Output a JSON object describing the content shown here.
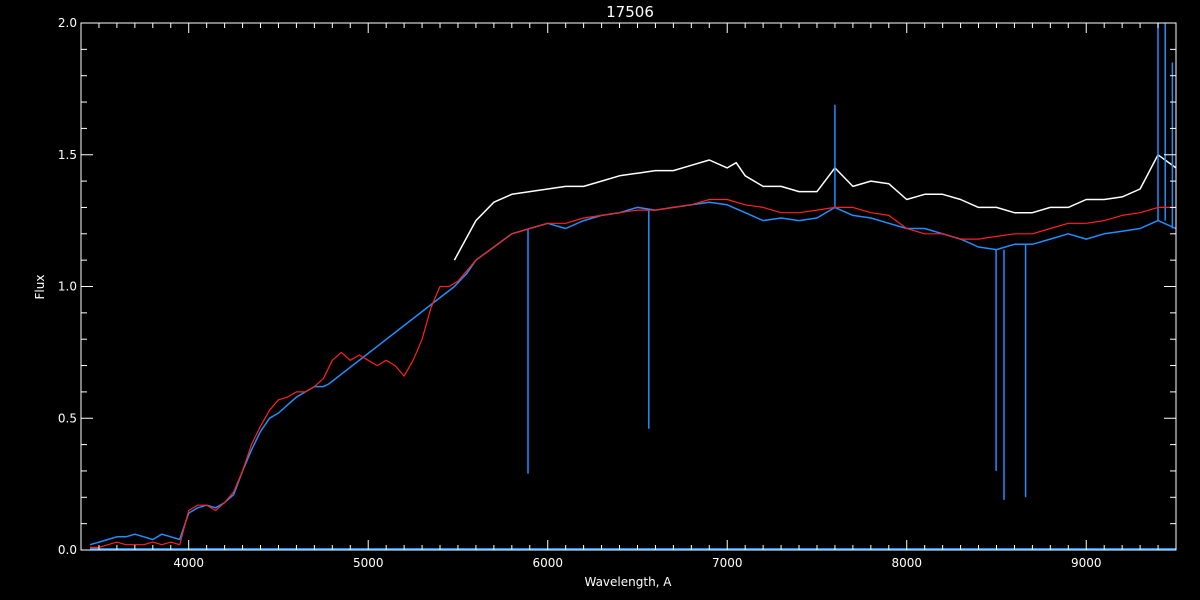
{
  "chart_data": {
    "type": "line",
    "title": "17506",
    "xlabel": "Wavelength, A",
    "ylabel": "Flux",
    "xlim": [
      3400,
      9500
    ],
    "ylim": [
      0,
      2.0
    ],
    "grid": false,
    "x_ticks": [
      {
        "value": 4000,
        "label": "4000"
      },
      {
        "value": 5000,
        "label": "5000"
      },
      {
        "value": 6000,
        "label": "6000"
      },
      {
        "value": 7000,
        "label": "7000"
      },
      {
        "value": 8000,
        "label": "8000"
      },
      {
        "value": 9000,
        "label": "9000"
      }
    ],
    "y_ticks": [
      {
        "value": 0.0,
        "label": "0.0"
      },
      {
        "value": 0.5,
        "label": "0.5"
      },
      {
        "value": 1.0,
        "label": "1.0"
      },
      {
        "value": 1.5,
        "label": "1.5"
      },
      {
        "value": 2.0,
        "label": "2.0"
      }
    ],
    "series": [
      {
        "color": "#ffffff",
        "x": [
          5480,
          5600,
          5700,
          5800,
          5900,
          6000,
          6100,
          6200,
          6300,
          6400,
          6500,
          6600,
          6700,
          6800,
          6900,
          7000,
          7050,
          7100,
          7200,
          7300,
          7400,
          7500,
          7600,
          7700,
          7800,
          7900,
          8000,
          8100,
          8200,
          8300,
          8400,
          8500,
          8600,
          8700,
          8800,
          8900,
          9000,
          9100,
          9200,
          9300,
          9400,
          9500
        ],
        "y": [
          1.1,
          1.25,
          1.32,
          1.35,
          1.36,
          1.37,
          1.38,
          1.38,
          1.4,
          1.42,
          1.43,
          1.44,
          1.44,
          1.46,
          1.48,
          1.45,
          1.47,
          1.42,
          1.38,
          1.38,
          1.36,
          1.36,
          1.45,
          1.38,
          1.4,
          1.39,
          1.33,
          1.35,
          1.35,
          1.33,
          1.3,
          1.3,
          1.28,
          1.28,
          1.3,
          1.3,
          1.33,
          1.33,
          1.34,
          1.37,
          1.5,
          1.45
        ]
      },
      {
        "color": "#1e8fff",
        "x": [
          3450,
          3500,
          3550,
          3600,
          3650,
          3700,
          3750,
          3800,
          3850,
          3900,
          3950,
          4000,
          4050,
          4100,
          4150,
          4200,
          4250,
          4300,
          4350,
          4400,
          4450,
          4500,
          4550,
          4600,
          4650,
          4700,
          4750,
          4780,
          5480,
          5550,
          5600,
          5700,
          5800,
          5900,
          6000,
          6100,
          6200,
          6300,
          6400,
          6500,
          6600,
          6700,
          6800,
          6900,
          7000,
          7100,
          7200,
          7300,
          7400,
          7500,
          7600,
          7700,
          7800,
          7900,
          8000,
          8100,
          8200,
          8300,
          8400,
          8500,
          8600,
          8700,
          8800,
          8900,
          9000,
          9100,
          9200,
          9300,
          9400,
          9500
        ],
        "y": [
          0.02,
          0.03,
          0.04,
          0.05,
          0.05,
          0.06,
          0.05,
          0.04,
          0.06,
          0.05,
          0.04,
          0.14,
          0.16,
          0.17,
          0.16,
          0.18,
          0.21,
          0.3,
          0.38,
          0.45,
          0.5,
          0.52,
          0.55,
          0.58,
          0.6,
          0.62,
          0.62,
          0.63,
          1.0,
          1.05,
          1.1,
          1.15,
          1.2,
          1.22,
          1.24,
          1.22,
          1.25,
          1.27,
          1.28,
          1.3,
          1.29,
          1.3,
          1.31,
          1.32,
          1.31,
          1.28,
          1.25,
          1.26,
          1.25,
          1.26,
          1.3,
          1.27,
          1.26,
          1.24,
          1.22,
          1.22,
          1.2,
          1.18,
          1.15,
          1.14,
          1.16,
          1.16,
          1.18,
          1.2,
          1.18,
          1.2,
          1.21,
          1.22,
          1.25,
          1.22
        ],
        "absorption_lines": [
          {
            "x": 5890,
            "y": 0.29
          },
          {
            "x": 6563,
            "y": 0.46
          },
          {
            "x": 7600,
            "y": 1.69
          },
          {
            "x": 8498,
            "y": 0.3
          },
          {
            "x": 8542,
            "y": 0.19
          },
          {
            "x": 8662,
            "y": 0.2
          },
          {
            "x": 9400,
            "y": 2.0
          },
          {
            "x": 9440,
            "y": 2.0
          },
          {
            "x": 9480,
            "y": 1.85
          }
        ]
      },
      {
        "color": "#1e8fff",
        "x": [
          3450,
          9500
        ],
        "y": [
          0.005,
          0.005
        ]
      },
      {
        "color": "#ff2020",
        "x": [
          3450,
          3500,
          3550,
          3600,
          3650,
          3700,
          3750,
          3800,
          3850,
          3900,
          3950,
          4000,
          4050,
          4100,
          4150,
          4200,
          4250,
          4300,
          4350,
          4400,
          4450,
          4500,
          4550,
          4600,
          4650,
          4700,
          4750,
          4800,
          4850,
          4900,
          4950,
          5000,
          5050,
          5100,
          5150,
          5200,
          5250,
          5300,
          5350,
          5400,
          5450,
          5500,
          5600,
          5700,
          5800,
          5900,
          6000,
          6100,
          6200,
          6300,
          6400,
          6500,
          6600,
          6700,
          6800,
          6900,
          7000,
          7100,
          7200,
          7300,
          7400,
          7500,
          7600,
          7700,
          7800,
          7900,
          8000,
          8100,
          8200,
          8300,
          8400,
          8500,
          8600,
          8700,
          8800,
          8900,
          9000,
          9100,
          9200,
          9300,
          9400,
          9500
        ],
        "y": [
          0.01,
          0.01,
          0.02,
          0.03,
          0.02,
          0.02,
          0.02,
          0.03,
          0.02,
          0.03,
          0.02,
          0.15,
          0.17,
          0.17,
          0.15,
          0.18,
          0.22,
          0.3,
          0.4,
          0.47,
          0.53,
          0.57,
          0.58,
          0.6,
          0.6,
          0.62,
          0.65,
          0.72,
          0.75,
          0.72,
          0.74,
          0.72,
          0.7,
          0.72,
          0.7,
          0.66,
          0.72,
          0.8,
          0.92,
          1.0,
          1.0,
          1.02,
          1.1,
          1.15,
          1.2,
          1.22,
          1.24,
          1.24,
          1.26,
          1.27,
          1.28,
          1.29,
          1.29,
          1.3,
          1.31,
          1.33,
          1.33,
          1.31,
          1.3,
          1.28,
          1.28,
          1.29,
          1.3,
          1.3,
          1.28,
          1.27,
          1.22,
          1.2,
          1.2,
          1.18,
          1.18,
          1.19,
          1.2,
          1.2,
          1.22,
          1.24,
          1.24,
          1.25,
          1.27,
          1.28,
          1.3,
          1.3
        ]
      }
    ]
  }
}
